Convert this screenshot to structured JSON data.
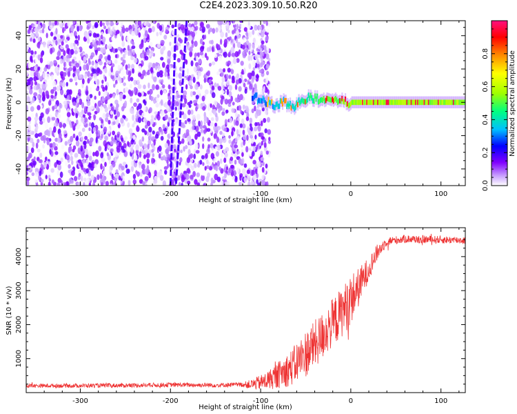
{
  "figure": {
    "title": "C2E4.2023.309.10.50.R20"
  },
  "chart_data": [
    {
      "type": "heatmap",
      "description_role": "spectrogram",
      "title": "",
      "xlabel": "Height of straight line (km)",
      "ylabel": "Frequency (Hz)",
      "xlim": [
        -360,
        127
      ],
      "ylim": [
        -50,
        49
      ],
      "x_ticks": [
        -300,
        -200,
        -100,
        0,
        100
      ],
      "y_ticks": [
        -40,
        -20,
        0,
        20,
        40
      ],
      "colorbar": {
        "label": "Normalized spectral amplitude",
        "range": [
          0.0,
          1.0
        ],
        "ticks": [
          0.0,
          0.2,
          0.4,
          0.6,
          0.8
        ],
        "colormap": [
          "#ffffff",
          "#c8a0ff",
          "#8000ff",
          "#0000ff",
          "#00c0ff",
          "#00ff80",
          "#a0ff00",
          "#ffff00",
          "#ff8000",
          "#ff0000",
          "#ff1080"
        ]
      },
      "features": {
        "noise_region_x": [
          -360,
          -100
        ],
        "noise_amplitude": 0.2,
        "streaks": [
          {
            "x_start": -194,
            "y_start": 49,
            "x_end": -200,
            "y_end": -50
          },
          {
            "x_start": -182,
            "y_start": 49,
            "x_end": -194,
            "y_end": -50
          }
        ],
        "signal_ridge": [
          {
            "x": -110,
            "y": 3
          },
          {
            "x": -95,
            "y": 1
          },
          {
            "x": -85,
            "y": -2
          },
          {
            "x": -75,
            "y": 0
          },
          {
            "x": -65,
            "y": -3
          },
          {
            "x": -55,
            "y": 1
          },
          {
            "x": -45,
            "y": 3
          },
          {
            "x": -35,
            "y": 2
          },
          {
            "x": -25,
            "y": 1
          },
          {
            "x": -15,
            "y": 1
          },
          {
            "x": -5,
            "y": 0
          },
          {
            "x": 0,
            "y": 0
          },
          {
            "x": 127,
            "y": 0
          }
        ],
        "signal_peak_amplitude": 1.0
      }
    },
    {
      "type": "line",
      "title": "",
      "xlabel": "Height of straight line (km)",
      "ylabel": "SNR (10 * v/v)",
      "xlim": [
        -360,
        127
      ],
      "ylim": [
        0,
        4850
      ],
      "x_ticks": [
        -300,
        -200,
        -100,
        0,
        100
      ],
      "y_ticks": [
        1000,
        2000,
        3000,
        4000
      ],
      "series": [
        {
          "color": "#ee3333",
          "envelope": [
            {
              "x": -360,
              "y": 200
            },
            {
              "x": -250,
              "y": 210
            },
            {
              "x": -200,
              "y": 230
            },
            {
              "x": -150,
              "y": 220
            },
            {
              "x": -110,
              "y": 240
            },
            {
              "x": -95,
              "y": 330
            },
            {
              "x": -80,
              "y": 520
            },
            {
              "x": -65,
              "y": 750
            },
            {
              "x": -50,
              "y": 1150
            },
            {
              "x": -35,
              "y": 1550
            },
            {
              "x": -25,
              "y": 1900
            },
            {
              "x": -15,
              "y": 2200
            },
            {
              "x": -5,
              "y": 2550
            },
            {
              "x": 0,
              "y": 2750
            },
            {
              "x": 10,
              "y": 3150
            },
            {
              "x": 20,
              "y": 3650
            },
            {
              "x": 30,
              "y": 4150
            },
            {
              "x": 40,
              "y": 4450
            },
            {
              "x": 60,
              "y": 4520
            },
            {
              "x": 90,
              "y": 4500
            },
            {
              "x": 127,
              "y": 4480
            }
          ],
          "noise_amplitude": [
            {
              "x": -360,
              "y": 120
            },
            {
              "x": -120,
              "y": 140
            },
            {
              "x": -90,
              "y": 600
            },
            {
              "x": -50,
              "y": 1400
            },
            {
              "x": 0,
              "y": 1500
            },
            {
              "x": 20,
              "y": 700
            },
            {
              "x": 40,
              "y": 250
            },
            {
              "x": 127,
              "y": 220
            }
          ]
        }
      ]
    }
  ]
}
